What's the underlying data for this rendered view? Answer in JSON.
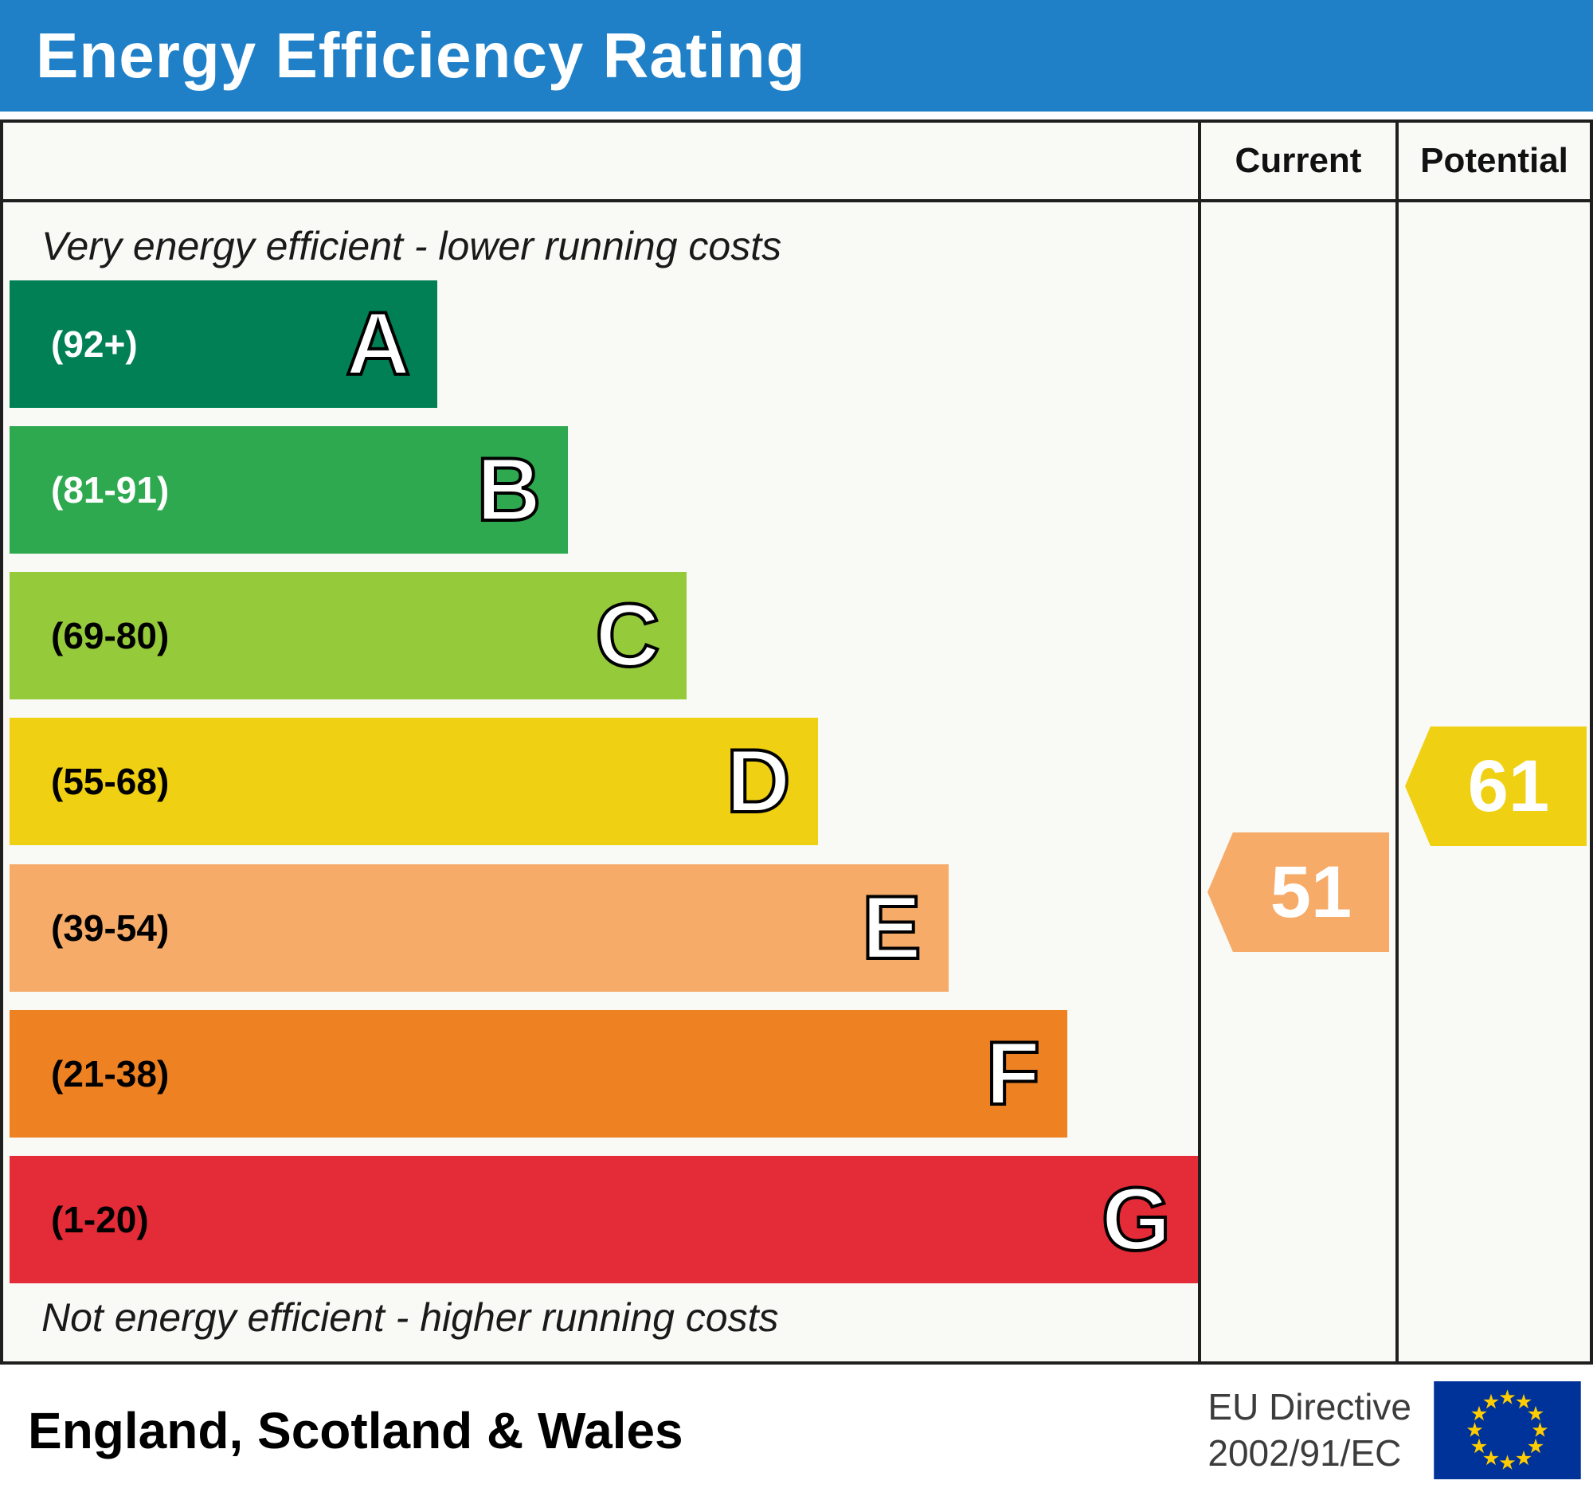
{
  "header": {
    "title": "Energy Efficiency Rating"
  },
  "columns": [
    {
      "label": "Current"
    },
    {
      "label": "Potential"
    }
  ],
  "notes": {
    "top": "Very energy efficient - lower running costs",
    "bottom": "Not energy efficient - higher running costs"
  },
  "footer": {
    "region": "England, Scotland & Wales",
    "eu_directive": {
      "line1": "EU Directive",
      "line2": "2002/91/EC"
    },
    "flag": {
      "background": "#003399",
      "star_color": "#FFCC00"
    }
  },
  "chart_data": {
    "type": "bar",
    "title": "Energy Efficiency Rating",
    "bands": [
      {
        "letter": "A",
        "range_label": "(92+)",
        "range": [
          92,
          100
        ],
        "color": "#008054",
        "label_color": "#ffffff",
        "width_pct": 36
      },
      {
        "letter": "B",
        "range_label": "(81-91)",
        "range": [
          81,
          91
        ],
        "color": "#2ea94f",
        "label_color": "#ffffff",
        "width_pct": 47
      },
      {
        "letter": "C",
        "range_label": "(69-80)",
        "range": [
          69,
          80
        ],
        "color": "#95ca3b",
        "label_color": "#000000",
        "width_pct": 57
      },
      {
        "letter": "D",
        "range_label": "(55-68)",
        "range": [
          55,
          68
        ],
        "color": "#f0d012",
        "label_color": "#000000",
        "width_pct": 68
      },
      {
        "letter": "E",
        "range_label": "(39-54)",
        "range": [
          39,
          54
        ],
        "color": "#f6ab69",
        "label_color": "#000000",
        "width_pct": 79
      },
      {
        "letter": "F",
        "range_label": "(21-38)",
        "range": [
          21,
          38
        ],
        "color": "#ee8122",
        "label_color": "#000000",
        "width_pct": 89
      },
      {
        "letter": "G",
        "range_label": "(1-20)",
        "range": [
          1,
          20
        ],
        "color": "#e42b38",
        "label_color": "#000000",
        "width_pct": 100
      }
    ],
    "ratings": [
      {
        "name": "current",
        "value": 51,
        "band": "E",
        "color": "#f6ab69"
      },
      {
        "name": "potential",
        "value": 61,
        "band": "D",
        "color": "#f0d012"
      }
    ]
  }
}
